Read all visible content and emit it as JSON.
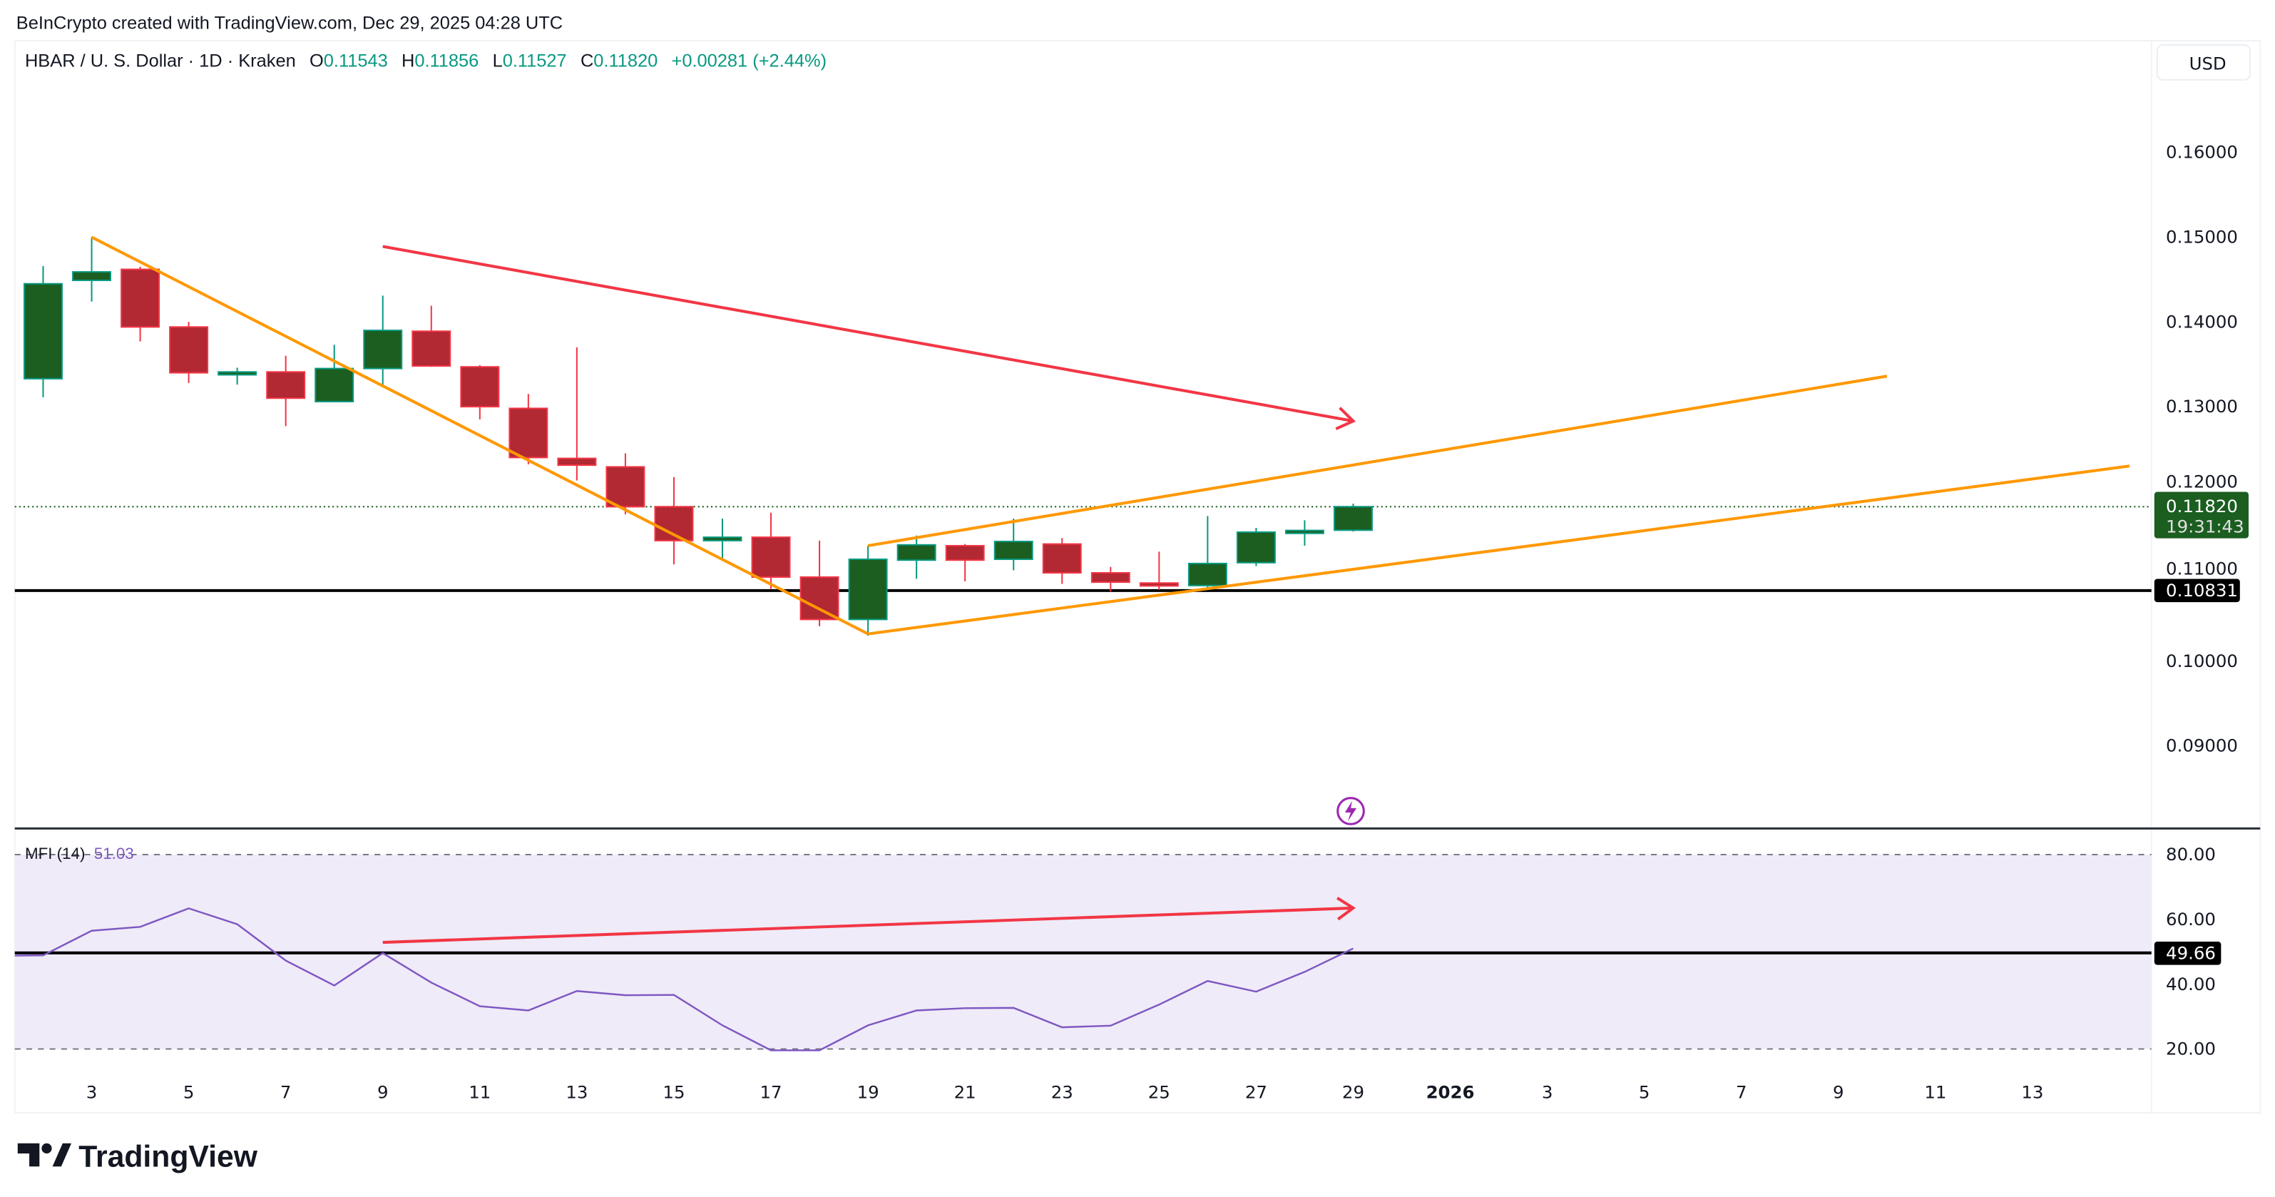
{
  "attribution": "BeInCrypto created with TradingView.com, Dec 29, 2025 04:28 UTC",
  "legend": {
    "symbol": "HBAR / U. S. Dollar · 1D · Kraken",
    "o_label": "O",
    "o": "0.11543",
    "h_label": "H",
    "h": "0.11856",
    "l_label": "L",
    "l": "0.11527",
    "c_label": "C",
    "c": "0.11820",
    "change": "+0.00281 (+2.44%)"
  },
  "currency_button": "USD",
  "price_axis": {
    "ticks": [
      "0.16000",
      "0.15000",
      "0.14000",
      "0.13000",
      "0.12000",
      "0.11000",
      "0.10000",
      "0.09000"
    ],
    "last_price_label": "0.11820",
    "countdown": "19:31:43",
    "hline_label": "0.10831"
  },
  "mfi": {
    "title": "MFI (14)",
    "value": "51.03",
    "ticks": [
      "80.00",
      "60.00",
      "40.00",
      "20.00"
    ],
    "hline_label": "49.66"
  },
  "x_ticks": [
    "3",
    "5",
    "7",
    "9",
    "11",
    "13",
    "15",
    "17",
    "19",
    "21",
    "23",
    "25",
    "27",
    "29",
    "2026",
    "3",
    "5",
    "7",
    "9",
    "11",
    "13"
  ],
  "logo_text": "TradingView",
  "colors": {
    "up_body": "#1b5e20",
    "up_border": "#089981",
    "down_body": "#b22833",
    "down_border": "#f23645",
    "trendline": "#ff9800",
    "arrow": "#f23645",
    "mfi_line": "#7e57c2",
    "mfi_band": "#efebf8",
    "accent": "#089981"
  },
  "chart_data": [
    {
      "type": "candlestick",
      "title": "HBAR / U. S. Dollar · 1D · Kraken",
      "ylim": [
        0.085,
        0.165
      ],
      "grid": false,
      "candles": [
        {
          "date": "2025-12-02",
          "o": 0.1333,
          "h": 0.1466,
          "l": 0.1311,
          "c": 0.1445
        },
        {
          "date": "2025-12-03",
          "o": 0.1449,
          "h": 0.15,
          "l": 0.1424,
          "c": 0.1459
        },
        {
          "date": "2025-12-04",
          "o": 0.1462,
          "h": 0.1465,
          "l": 0.1377,
          "c": 0.1394
        },
        {
          "date": "2025-12-05",
          "o": 0.1394,
          "h": 0.14,
          "l": 0.1328,
          "c": 0.134
        },
        {
          "date": "2025-12-06",
          "o": 0.134,
          "h": 0.1346,
          "l": 0.1326,
          "c": 0.1341
        },
        {
          "date": "2025-12-07",
          "o": 0.1341,
          "h": 0.136,
          "l": 0.1277,
          "c": 0.131
        },
        {
          "date": "2025-12-08",
          "o": 0.1306,
          "h": 0.1373,
          "l": 0.1306,
          "c": 0.1345
        },
        {
          "date": "2025-12-09",
          "o": 0.1345,
          "h": 0.1431,
          "l": 0.1324,
          "c": 0.139
        },
        {
          "date": "2025-12-10",
          "o": 0.1389,
          "h": 0.1419,
          "l": 0.1347,
          "c": 0.1348
        },
        {
          "date": "2025-12-11",
          "o": 0.1347,
          "h": 0.1349,
          "l": 0.1285,
          "c": 0.13
        },
        {
          "date": "2025-12-12",
          "o": 0.1298,
          "h": 0.1315,
          "l": 0.1232,
          "c": 0.124
        },
        {
          "date": "2025-12-13",
          "o": 0.1239,
          "h": 0.137,
          "l": 0.1213,
          "c": 0.1231
        },
        {
          "date": "2025-12-14",
          "o": 0.1229,
          "h": 0.1245,
          "l": 0.1173,
          "c": 0.1182
        },
        {
          "date": "2025-12-15",
          "o": 0.1182,
          "h": 0.1217,
          "l": 0.1114,
          "c": 0.1142
        },
        {
          "date": "2025-12-16",
          "o": 0.1142,
          "h": 0.1168,
          "l": 0.112,
          "c": 0.1146
        },
        {
          "date": "2025-12-17",
          "o": 0.1146,
          "h": 0.1175,
          "l": 0.1085,
          "c": 0.1099
        },
        {
          "date": "2025-12-18",
          "o": 0.1099,
          "h": 0.1142,
          "l": 0.1041,
          "c": 0.1049
        },
        {
          "date": "2025-12-19",
          "o": 0.1049,
          "h": 0.1136,
          "l": 0.103,
          "c": 0.112
        },
        {
          "date": "2025-12-20",
          "o": 0.1119,
          "h": 0.1148,
          "l": 0.1097,
          "c": 0.1137
        },
        {
          "date": "2025-12-21",
          "o": 0.1136,
          "h": 0.1138,
          "l": 0.1094,
          "c": 0.1119
        },
        {
          "date": "2025-12-22",
          "o": 0.112,
          "h": 0.1168,
          "l": 0.1107,
          "c": 0.1141
        },
        {
          "date": "2025-12-23",
          "o": 0.1138,
          "h": 0.1145,
          "l": 0.1091,
          "c": 0.1104
        },
        {
          "date": "2025-12-24",
          "o": 0.1104,
          "h": 0.1111,
          "l": 0.1082,
          "c": 0.1093
        },
        {
          "date": "2025-12-25",
          "o": 0.1092,
          "h": 0.1129,
          "l": 0.1084,
          "c": 0.109
        },
        {
          "date": "2025-12-26",
          "o": 0.1089,
          "h": 0.1171,
          "l": 0.1085,
          "c": 0.1115
        },
        {
          "date": "2025-12-27",
          "o": 0.1116,
          "h": 0.1157,
          "l": 0.1112,
          "c": 0.1152
        },
        {
          "date": "2025-12-28",
          "o": 0.1152,
          "h": 0.1166,
          "l": 0.1136,
          "c": 0.1154
        },
        {
          "date": "2025-12-29",
          "o": 0.11543,
          "h": 0.11856,
          "l": 0.11527,
          "c": 0.1182
        }
      ],
      "last_price": 0.1182,
      "horizontal_line": 0.10831,
      "drawings": [
        {
          "kind": "trendline",
          "from": [
            "2025-12-03",
            0.15
          ],
          "to": [
            "2025-12-19",
            0.1032
          ]
        },
        {
          "kind": "trendline",
          "from": [
            "2025-12-19",
            0.1032
          ],
          "to": [
            "2026-01-14",
            0.123
          ]
        },
        {
          "kind": "trendline",
          "from": [
            "2025-12-19",
            0.1136
          ],
          "to": [
            "2026-01-09",
            0.1336
          ]
        },
        {
          "kind": "arrow",
          "from": [
            "2025-12-09",
            0.1489
          ],
          "to": [
            "2025-12-29",
            0.1283
          ]
        }
      ]
    },
    {
      "type": "line",
      "title": "MFI (14)",
      "ylim": [
        10,
        88
      ],
      "band": [
        20,
        80
      ],
      "dates": [
        "2025-12-01",
        "2025-12-02",
        "2025-12-03",
        "2025-12-04",
        "2025-12-05",
        "2025-12-06",
        "2025-12-07",
        "2025-12-08",
        "2025-12-09",
        "2025-12-10",
        "2025-12-11",
        "2025-12-12",
        "2025-12-13",
        "2025-12-14",
        "2025-12-15",
        "2025-12-16",
        "2025-12-17",
        "2025-12-18",
        "2025-12-19",
        "2025-12-20",
        "2025-12-21",
        "2025-12-22",
        "2025-12-23",
        "2025-12-24",
        "2025-12-25",
        "2025-12-26",
        "2025-12-27",
        "2025-12-28",
        "2025-12-29"
      ],
      "values": [
        48.8,
        48.9,
        56.5,
        57.7,
        63.4,
        58.5,
        47.3,
        39.6,
        49.6,
        40.5,
        33.2,
        31.9,
        37.9,
        36.6,
        36.7,
        27.3,
        19.6,
        19.6,
        27.3,
        31.9,
        32.6,
        32.7,
        26.7,
        27.2,
        33.7,
        41.0,
        37.7,
        43.8,
        51.03
      ],
      "horizontal_line": 49.66,
      "drawings": [
        {
          "kind": "arrow",
          "from": [
            "2025-12-09",
            52.9
          ],
          "to": [
            "2025-12-29",
            63.5
          ]
        }
      ]
    }
  ]
}
